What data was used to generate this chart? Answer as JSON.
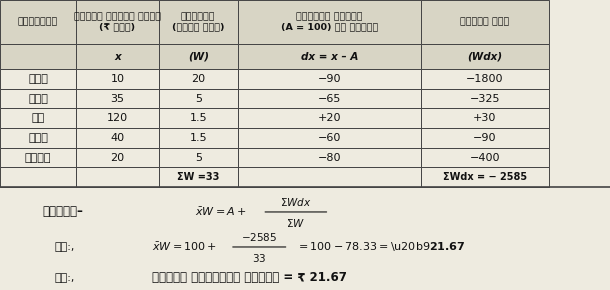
{
  "col_headers_row1": [
    "वस्तुएँ",
    "मूल्य प्रति किलो\n(₹ में)",
    "मात्रा\n(किलो में)",
    "कल्पित माध्य\n(A = 100) से विचलन",
    "विचलन भार"
  ],
  "col_headers_row2": [
    "",
    "x",
    "(W)",
    "dx = x – A",
    "(Wdx)"
  ],
  "rows": [
    [
      "आटा",
      "10",
      "20",
      "−90",
      "−1800"
    ],
    [
      "दाल",
      "35",
      "5",
      "−65",
      "−325"
    ],
    [
      "घी",
      "120",
      "1.5",
      "+20",
      "+30"
    ],
    [
      "तेल",
      "40",
      "1.5",
      "−60",
      "−90"
    ],
    [
      "चावल",
      "20",
      "5",
      "−80",
      "−400"
    ]
  ],
  "sum_row": [
    "",
    "",
    "ΣW =33",
    "",
    "ΣWdx = − 2585"
  ],
  "formula_label": "सूत्र–",
  "line2_label": "अत:,",
  "line3_label": "अत:,",
  "line3_text": "भारित समान्तर माध्य = ₹ 21.67",
  "bg_color": "#eeebe0",
  "header_bg": "#d8d5c5",
  "grid_color": "#444444",
  "text_color": "#111111"
}
